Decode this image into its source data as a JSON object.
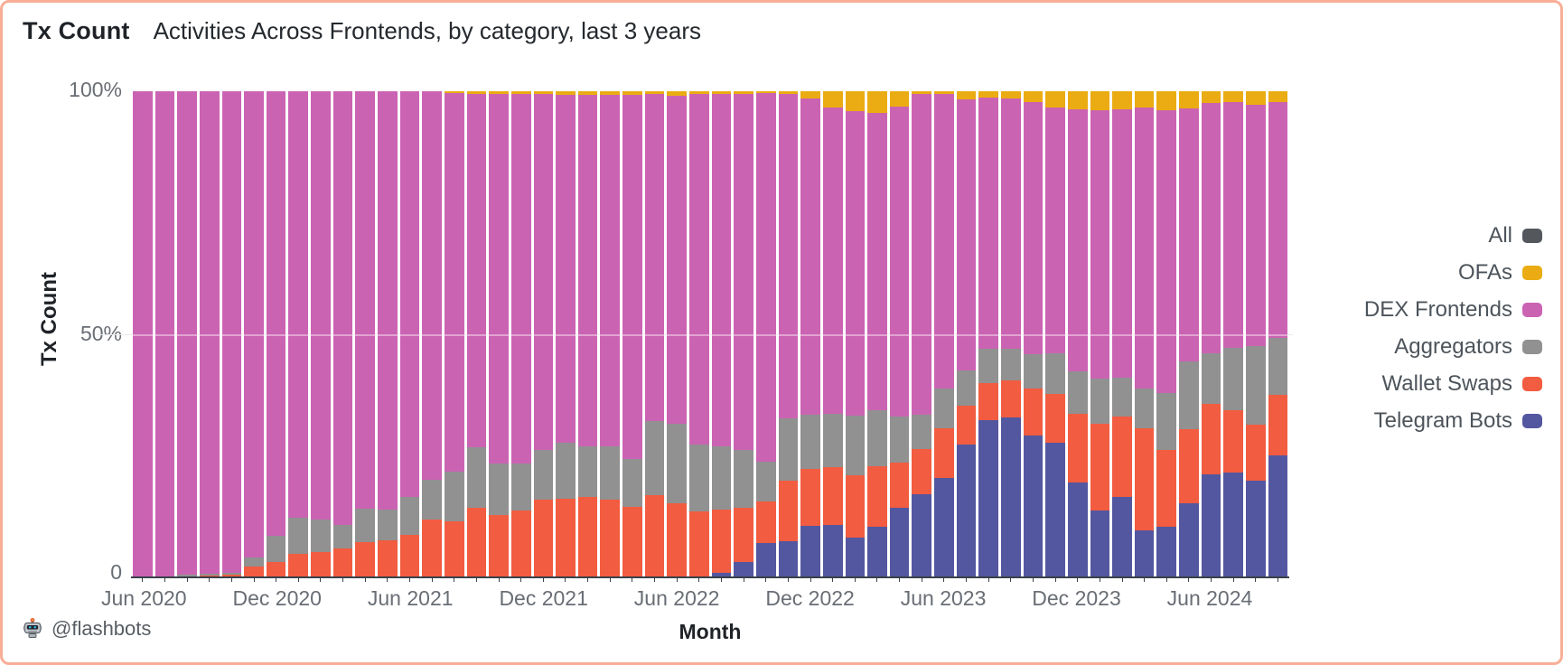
{
  "header": {
    "title": "Tx Count",
    "subtitle": "Activities Across Frontends, by category, last 3 years"
  },
  "footer": {
    "handle": "@flashbots"
  },
  "colors": {
    "frame_border": "#F8AE97",
    "axis_line": "#3A4149",
    "tick_text": "#696E75",
    "title_text": "#1F2328",
    "legend_text": "#4D545B",
    "gridline_under": "#E9E9E9",
    "gridline_over": "rgba(255,255,255,0.42)"
  },
  "legend": {
    "items": [
      {
        "label": "All",
        "color": "#54585D"
      },
      {
        "label": "OFAs",
        "color": "#EAAC12"
      },
      {
        "label": "DEX Frontends",
        "color": "#CB63B3"
      },
      {
        "label": "Aggregators",
        "color": "#919191"
      },
      {
        "label": "Wallet Swaps",
        "color": "#F25C40"
      },
      {
        "label": "Telegram Bots",
        "color": "#5357A0"
      }
    ]
  },
  "chart_data": {
    "type": "bar",
    "stacked": true,
    "normalized_percent": true,
    "title": "Tx Count — Activities Across Frontends, by category, last 3 years",
    "xlabel": "Month",
    "ylabel": "Tx Count",
    "ylim": [
      0,
      100
    ],
    "yticks": [
      "100%",
      "50%",
      "0"
    ],
    "grid": "faint line at 50%",
    "legend_position": "right",
    "stack_order_top_to_bottom": [
      "OFAs",
      "DEX Frontends",
      "Aggregators",
      "Wallet Swaps",
      "Telegram Bots"
    ],
    "months": [
      "Jun 2020",
      "Jul 2020",
      "Aug 2020",
      "Sep 2020",
      "Oct 2020",
      "Nov 2020",
      "Dec 2020",
      "Jan 2021",
      "Feb 2021",
      "Mar 2021",
      "Apr 2021",
      "May 2021",
      "Jun 2021",
      "Jul 2021",
      "Aug 2021",
      "Sep 2021",
      "Oct 2021",
      "Nov 2021",
      "Dec 2021",
      "Jan 2022",
      "Feb 2022",
      "Mar 2022",
      "Apr 2022",
      "May 2022",
      "Jun 2022",
      "Jul 2022",
      "Aug 2022",
      "Sep 2022",
      "Oct 2022",
      "Nov 2022",
      "Dec 2022",
      "Jan 2023",
      "Feb 2023",
      "Mar 2023",
      "Apr 2023",
      "May 2023",
      "Jun 2023",
      "Jul 2023",
      "Aug 2023",
      "Sep 2023",
      "Oct 2023",
      "Nov 2023",
      "Dec 2023",
      "Jan 2024",
      "Feb 2024",
      "Mar 2024",
      "Apr 2024",
      "May 2024",
      "Jun 2024",
      "Jul 2024",
      "Aug 2024",
      "Sep 2024"
    ],
    "x_tick_labels": [
      {
        "index": 0,
        "label": "Jun 2020"
      },
      {
        "index": 6,
        "label": "Dec 2020"
      },
      {
        "index": 12,
        "label": "Jun 2021"
      },
      {
        "index": 18,
        "label": "Dec 2021"
      },
      {
        "index": 24,
        "label": "Jun 2022"
      },
      {
        "index": 30,
        "label": "Dec 2022"
      },
      {
        "index": 36,
        "label": "Jun 2023"
      },
      {
        "index": 42,
        "label": "Dec 2023"
      },
      {
        "index": 48,
        "label": "Jun 2024"
      }
    ],
    "series": [
      {
        "name": "Telegram Bots",
        "color": "#5357A0",
        "values": [
          0,
          0,
          0,
          0,
          0,
          0,
          0,
          0,
          0,
          0,
          0,
          0,
          0,
          0,
          0,
          0,
          0,
          0,
          0,
          0,
          0,
          0,
          0,
          0,
          0,
          0,
          0.8,
          2.9,
          6.9,
          7.2,
          10.4,
          10.6,
          8,
          10.3,
          14.1,
          17,
          20.3,
          27.2,
          32.3,
          32.8,
          29,
          27.5,
          19.3,
          13.6,
          16.4,
          9.5,
          10.2,
          15.1,
          21,
          21.5,
          19.7,
          25
        ]
      },
      {
        "name": "Wallet Swaps",
        "color": "#F25C40",
        "values": [
          0,
          0,
          0,
          0.1,
          0.3,
          2,
          3,
          4.7,
          5,
          5.7,
          7,
          7.4,
          8.5,
          11.7,
          11.4,
          14.1,
          12.6,
          13.6,
          15.8,
          16,
          16.3,
          15.8,
          14.3,
          16.8,
          15.1,
          13.4,
          13,
          11.2,
          8.5,
          12.6,
          11.7,
          12,
          12.8,
          12.5,
          9.3,
          9.2,
          10.2,
          8,
          7.6,
          7.7,
          9.7,
          10.2,
          14.2,
          17.9,
          16.6,
          21,
          15.8,
          15.2,
          14.5,
          12.8,
          11.5,
          12.5
        ]
      },
      {
        "name": "Aggregators",
        "color": "#919191",
        "values": [
          0,
          0,
          0.4,
          0.4,
          0.5,
          2,
          5.4,
          7.4,
          6.7,
          5,
          7,
          6.4,
          7.9,
          8.2,
          10.2,
          12.5,
          10.7,
          9.7,
          10.2,
          11.5,
          10.5,
          11,
          9.9,
          15.3,
          16.3,
          13.8,
          13.1,
          12,
          8.3,
          12.8,
          11.3,
          11,
          12.4,
          11.4,
          9.5,
          7.2,
          8.3,
          7.2,
          7,
          6.4,
          7.2,
          8.3,
          8.7,
          9.3,
          8,
          8.3,
          11.9,
          14,
          10.5,
          12.9,
          16.2,
          11.7
        ]
      },
      {
        "name": "DEX Frontends",
        "color": "#CB63B3",
        "values": [
          100,
          100,
          99.6,
          99.5,
          99.2,
          96,
          91.6,
          87.9,
          88.3,
          89.3,
          86,
          86.2,
          83.6,
          80.1,
          78,
          72.9,
          76.2,
          76.2,
          73.4,
          71.7,
          72.5,
          72.5,
          75.1,
          67.3,
          67.6,
          72.3,
          72.6,
          73.4,
          76,
          66.8,
          65.1,
          63,
          62.8,
          61.4,
          63.9,
          66.1,
          60.7,
          55.9,
          51.9,
          51.6,
          51.8,
          50.6,
          54.1,
          55.3,
          55.3,
          57.8,
          58.2,
          52.2,
          51.5,
          50.5,
          49.8,
          48.6
        ]
      },
      {
        "name": "OFAs",
        "color": "#EAAC12",
        "values": [
          0,
          0,
          0,
          0,
          0,
          0,
          0,
          0,
          0,
          0,
          0,
          0,
          0,
          0,
          0.4,
          0.5,
          0.5,
          0.5,
          0.6,
          0.8,
          0.7,
          0.7,
          0.7,
          0.6,
          1,
          0.5,
          0.5,
          0.5,
          0.3,
          0.6,
          1.5,
          3.4,
          4,
          4.4,
          3.2,
          0.5,
          0.5,
          1.7,
          1.2,
          1.5,
          2.3,
          3.4,
          3.7,
          3.9,
          3.7,
          3.4,
          3.9,
          3.5,
          2.5,
          2.3,
          2.8,
          2.2
        ]
      },
      {
        "name": "All",
        "color": "#54585D",
        "values": []
      }
    ]
  }
}
